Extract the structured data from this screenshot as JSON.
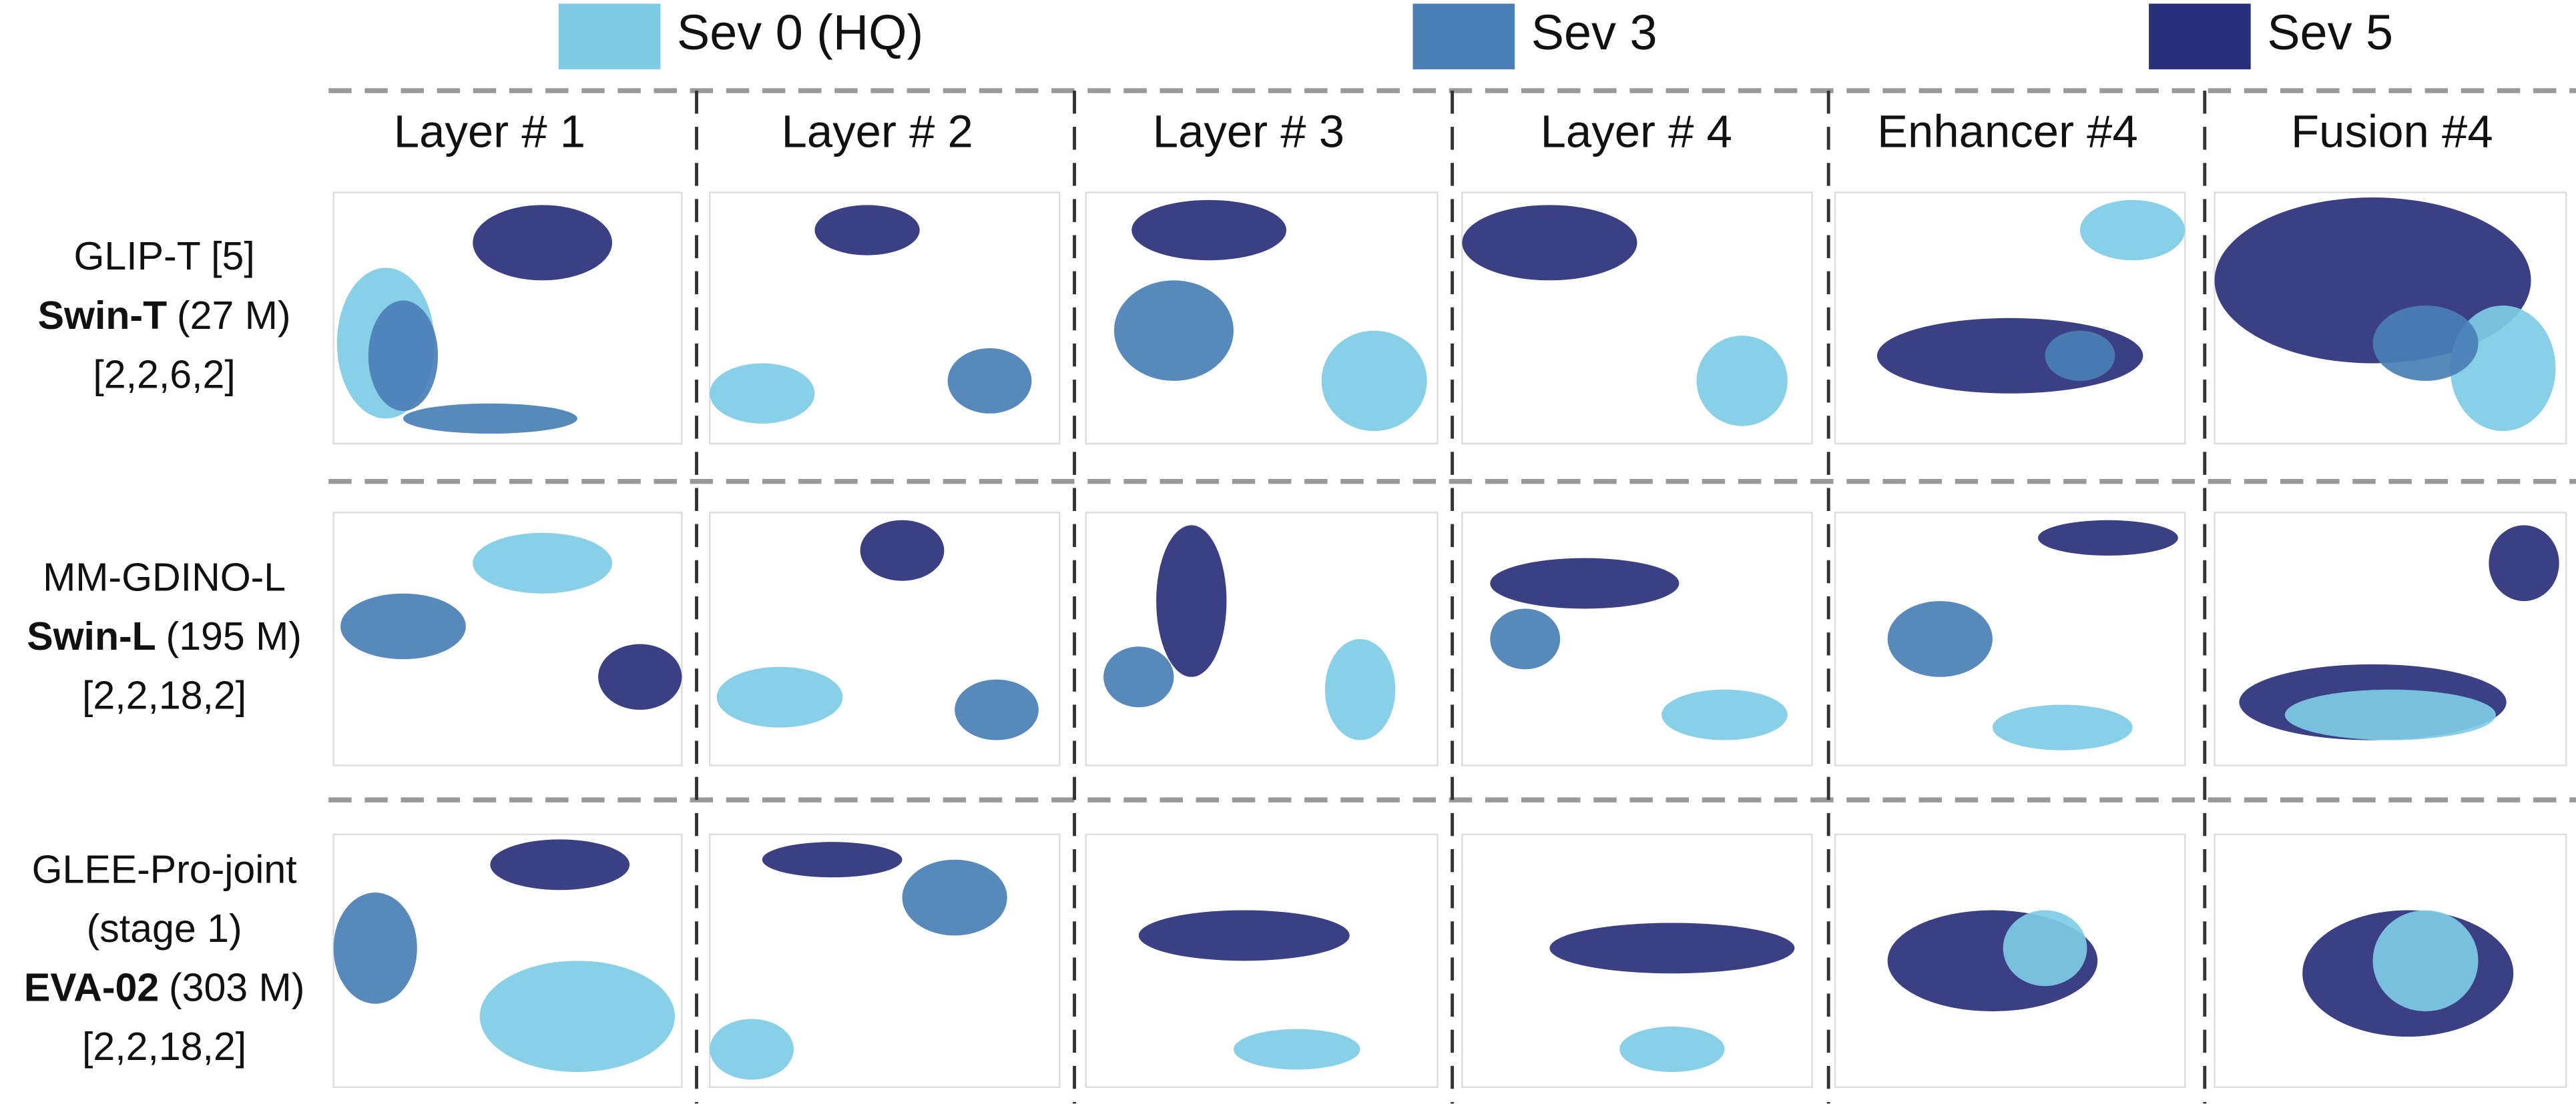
{
  "legend": [
    {
      "label": "Sev 0 (HQ)",
      "color": "#7ecbe6"
    },
    {
      "label": "Sev 3",
      "color": "#4a7fb5"
    },
    {
      "label": "Sev 5",
      "color": "#2a2f7a"
    }
  ],
  "columns": [
    "Layer # 1",
    "Layer # 2",
    "Layer # 3",
    "Layer # 4",
    "Enhancer #4",
    "Fusion #4"
  ],
  "rows": [
    {
      "name": "GLIP-T [5]",
      "backbone": "Swin-T",
      "params": "(27 M)",
      "depths": "[2,2,6,2]"
    },
    {
      "name": "MM-GDINO-L",
      "backbone": "Swin-L",
      "params": "(195 M)",
      "depths": "[2,2,18,2]"
    },
    {
      "name": "GLEE-Pro-joint",
      "note": "(stage 1)",
      "backbone": "EVA-02",
      "params": "(303 M)",
      "depths": "[2,2,18,2]"
    }
  ]
}
